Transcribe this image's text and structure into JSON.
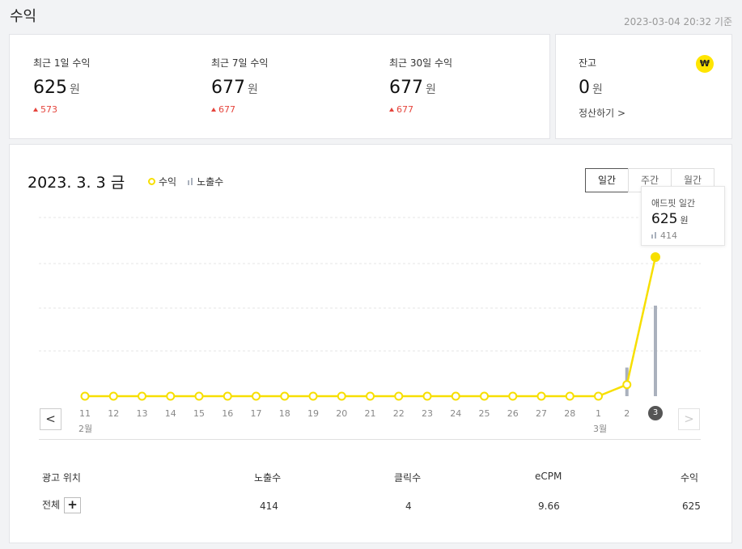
{
  "page": {
    "title": "수익",
    "timestamp": "2023-03-04 20:32 기준"
  },
  "stats": [
    {
      "label": "최근 1일 수익",
      "value": "625",
      "unit": "원",
      "delta": "573"
    },
    {
      "label": "최근 7일 수익",
      "value": "677",
      "unit": "원",
      "delta": "677"
    },
    {
      "label": "최근 30일 수익",
      "value": "677",
      "unit": "원",
      "delta": "677"
    }
  ],
  "balance": {
    "label": "잔고",
    "value": "0",
    "unit": "원",
    "settle_label": "정산하기 >",
    "icon": "won-icon",
    "icon_glyph": "₩",
    "accent": "#ffe500"
  },
  "chart_panel": {
    "date_title": "2023. 3. 3 금",
    "legend": {
      "revenue": "수익",
      "impressions": "노출수"
    },
    "periods": [
      {
        "label": "일간",
        "active": true
      },
      {
        "label": "주간",
        "active": false
      },
      {
        "label": "월간",
        "active": false
      }
    ],
    "tooltip": {
      "title": "애드핏 일간",
      "value": "625",
      "unit": "원",
      "impressions": "414"
    },
    "prev_label": "<",
    "next_label": ">",
    "month_labels": [
      "2월",
      "3월"
    ]
  },
  "chart_data": {
    "type": "line",
    "x": [
      "11",
      "12",
      "13",
      "14",
      "15",
      "16",
      "17",
      "18",
      "19",
      "20",
      "21",
      "22",
      "23",
      "24",
      "25",
      "26",
      "27",
      "28",
      "1",
      "2",
      "3"
    ],
    "series": [
      {
        "name": "수익",
        "values": [
          0,
          0,
          0,
          0,
          0,
          0,
          0,
          0,
          0,
          0,
          0,
          0,
          0,
          0,
          0,
          0,
          0,
          0,
          0,
          52,
          625
        ],
        "color": "#f7df00"
      },
      {
        "name": "노출수",
        "values": [
          0,
          0,
          0,
          0,
          0,
          0,
          0,
          0,
          0,
          0,
          0,
          0,
          0,
          0,
          0,
          0,
          0,
          0,
          0,
          131,
          414
        ],
        "color": "#aab1bd"
      }
    ],
    "selected": "3",
    "grid": true
  },
  "table": {
    "headers": [
      "광고 위치",
      "노출수",
      "클릭수",
      "eCPM",
      "수익"
    ],
    "row": {
      "label": "전체",
      "impressions": "414",
      "clicks": "4",
      "ecpm": "9.66",
      "revenue": "625"
    },
    "expand_label": "+"
  }
}
